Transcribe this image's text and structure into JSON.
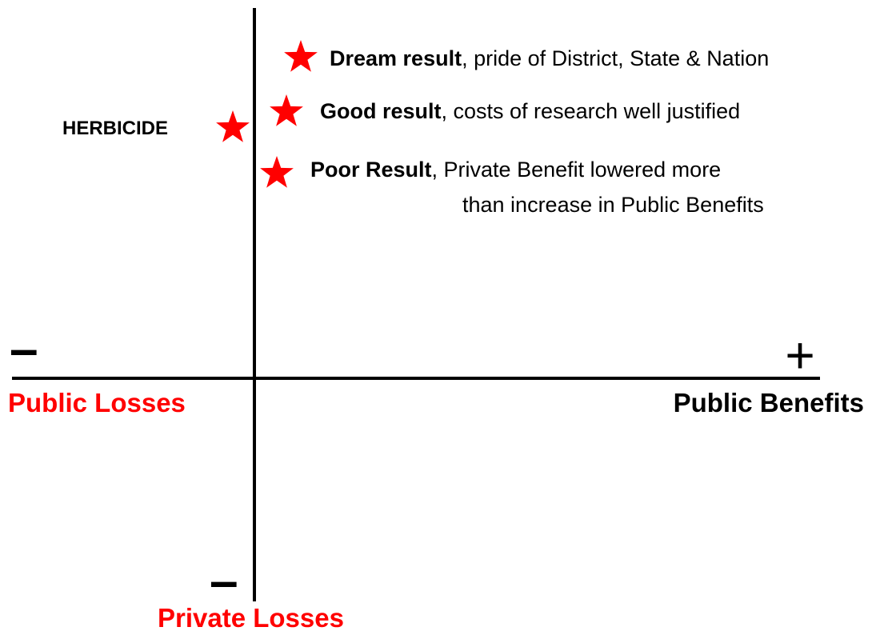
{
  "outcomes": [
    {
      "label": "Dream result",
      "text": ", pride of District, State & Nation"
    },
    {
      "label": "Good result",
      "text": ", costs of research well justified"
    },
    {
      "label": "Poor Result",
      "text": ", Private Benefit lowered more",
      "text2": "than increase in Public Benefits"
    }
  ],
  "herbicide": "HERBICIDE",
  "axes": {
    "left_sign": "–",
    "right_sign": "+",
    "bottom_sign": "–",
    "left_label": "Public Losses",
    "right_label": "Public Benefits",
    "bottom_label": "Private Losses"
  }
}
